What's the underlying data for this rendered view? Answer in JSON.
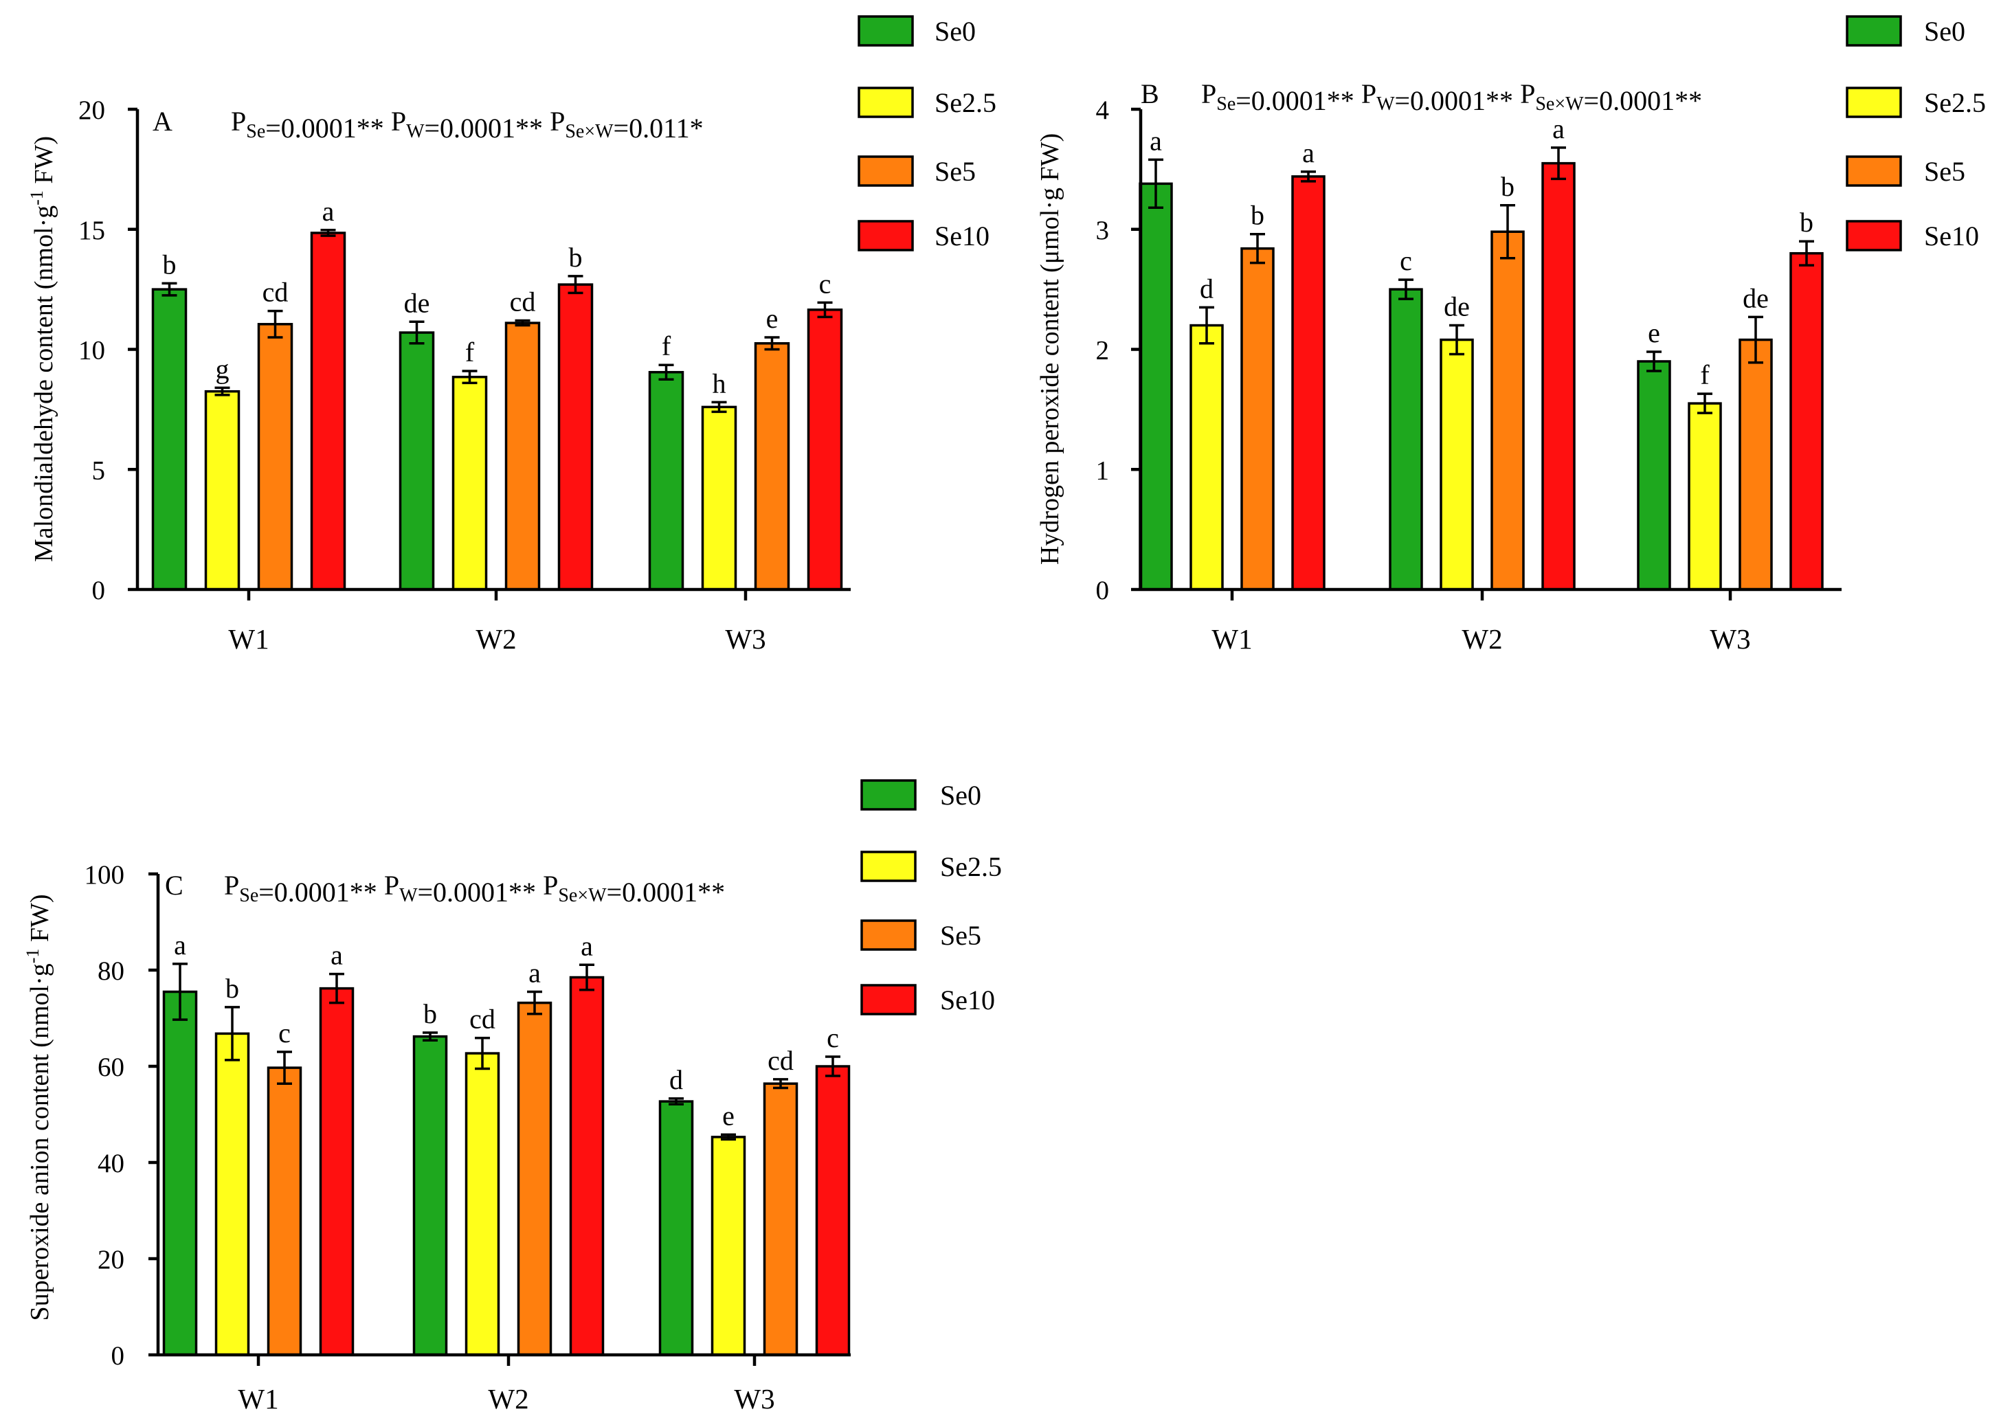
{
  "chart_data": [
    {
      "type": "bar",
      "panel": "A",
      "stats_parts": [
        {
          "p": "P",
          "sub": "Se",
          "val": "=0.0001**"
        },
        {
          "p": "P",
          "sub": "W",
          "val": "=0.0001**"
        },
        {
          "p": "P",
          "sub": "Se×W",
          "val": "=0.011*"
        }
      ],
      "ylabel_main": "Malondialdehyde content (nmol·g",
      "ylabel_sup": "-1",
      "ylabel_end": " FW)",
      "ylim": [
        0,
        20
      ],
      "yticks": [
        0,
        5,
        10,
        15,
        20
      ],
      "ytick_labels": [
        "0",
        "5",
        "10",
        "15",
        "20"
      ],
      "categories": [
        "W1",
        "W2",
        "W3"
      ],
      "series": [
        {
          "name": "Se0",
          "color": "#1ea81e",
          "values": [
            12.5,
            10.7,
            9.05
          ],
          "errors": [
            0.25,
            0.45,
            0.3
          ],
          "letters": [
            "b",
            "de",
            "f"
          ]
        },
        {
          "name": "Se2.5",
          "color": "#ffff1a",
          "values": [
            8.25,
            8.85,
            7.6
          ],
          "errors": [
            0.15,
            0.25,
            0.2
          ],
          "letters": [
            "g",
            "f",
            "h"
          ]
        },
        {
          "name": "Se5",
          "color": "#ff7f0e",
          "values": [
            11.05,
            11.1,
            10.25
          ],
          "errors": [
            0.55,
            0.1,
            0.25
          ],
          "letters": [
            "cd",
            "cd",
            "e"
          ]
        },
        {
          "name": "Se10",
          "color": "#ff1010",
          "values": [
            14.85,
            12.7,
            11.65
          ],
          "errors": [
            0.12,
            0.35,
            0.3
          ],
          "letters": [
            "a",
            "b",
            "c"
          ]
        }
      ]
    },
    {
      "type": "bar",
      "panel": "B",
      "stats_parts": [
        {
          "p": "P",
          "sub": "Se",
          "val": "=0.0001**"
        },
        {
          "p": "P",
          "sub": "W",
          "val": "=0.0001**"
        },
        {
          "p": "P",
          "sub": "Se×W",
          "val": "=0.0001**"
        }
      ],
      "ylabel_main": "Hydrogen peroxide content (μmol·g FW)",
      "ylabel_sup": "",
      "ylabel_end": "",
      "ylim": [
        0,
        4
      ],
      "yticks": [
        0,
        1,
        2,
        3,
        4
      ],
      "ytick_labels": [
        "0",
        "1",
        "2",
        "3",
        "4"
      ],
      "categories": [
        "W1",
        "W2",
        "W3"
      ],
      "series": [
        {
          "name": "Se0",
          "color": "#1ea81e",
          "values": [
            3.38,
            2.5,
            1.9
          ],
          "errors": [
            0.2,
            0.08,
            0.08
          ],
          "letters": [
            "a",
            "c",
            "e"
          ]
        },
        {
          "name": "Se2.5",
          "color": "#ffff1a",
          "values": [
            2.2,
            2.08,
            1.55
          ],
          "errors": [
            0.15,
            0.12,
            0.08
          ],
          "letters": [
            "d",
            "de",
            "f"
          ]
        },
        {
          "name": "Se5",
          "color": "#ff7f0e",
          "values": [
            2.84,
            2.98,
            2.08
          ],
          "errors": [
            0.12,
            0.22,
            0.19
          ],
          "letters": [
            "b",
            "b",
            "de"
          ]
        },
        {
          "name": "Se10",
          "color": "#ff1010",
          "values": [
            3.44,
            3.55,
            2.8
          ],
          "errors": [
            0.04,
            0.13,
            0.1
          ],
          "letters": [
            "a",
            "a",
            "b"
          ]
        }
      ]
    },
    {
      "type": "bar",
      "panel": "C",
      "stats_parts": [
        {
          "p": "P",
          "sub": "Se",
          "val": "=0.0001**"
        },
        {
          "p": "P",
          "sub": "W",
          "val": "=0.0001**"
        },
        {
          "p": "P",
          "sub": "Se×W",
          "val": "=0.0001**"
        }
      ],
      "ylabel_main": "Superoxide anion content (nmol·g",
      "ylabel_sup": "-1",
      "ylabel_end": " FW)",
      "ylim": [
        0,
        100
      ],
      "yticks": [
        0,
        20,
        40,
        60,
        80,
        100
      ],
      "ytick_labels": [
        "0",
        "20",
        "40",
        "60",
        "80",
        "100"
      ],
      "categories": [
        "W1",
        "W2",
        "W3"
      ],
      "series": [
        {
          "name": "Se0",
          "color": "#1ea81e",
          "values": [
            75.5,
            66.2,
            52.7
          ],
          "errors": [
            5.8,
            0.8,
            0.6
          ],
          "letters": [
            "a",
            "b",
            "d"
          ]
        },
        {
          "name": "Se2.5",
          "color": "#ffff1a",
          "values": [
            66.8,
            62.7,
            45.3
          ],
          "errors": [
            5.5,
            3.2,
            0.5
          ],
          "letters": [
            "b",
            "cd",
            "e"
          ]
        },
        {
          "name": "Se5",
          "color": "#ff7f0e",
          "values": [
            59.7,
            73.2,
            56.4
          ],
          "errors": [
            3.3,
            2.3,
            0.9
          ],
          "letters": [
            "c",
            "a",
            "cd"
          ]
        },
        {
          "name": "Se10",
          "color": "#ff1010",
          "values": [
            76.2,
            78.5,
            60.0
          ],
          "errors": [
            3.0,
            2.6,
            2.0
          ],
          "letters": [
            "a",
            "a",
            "c"
          ]
        }
      ]
    }
  ]
}
